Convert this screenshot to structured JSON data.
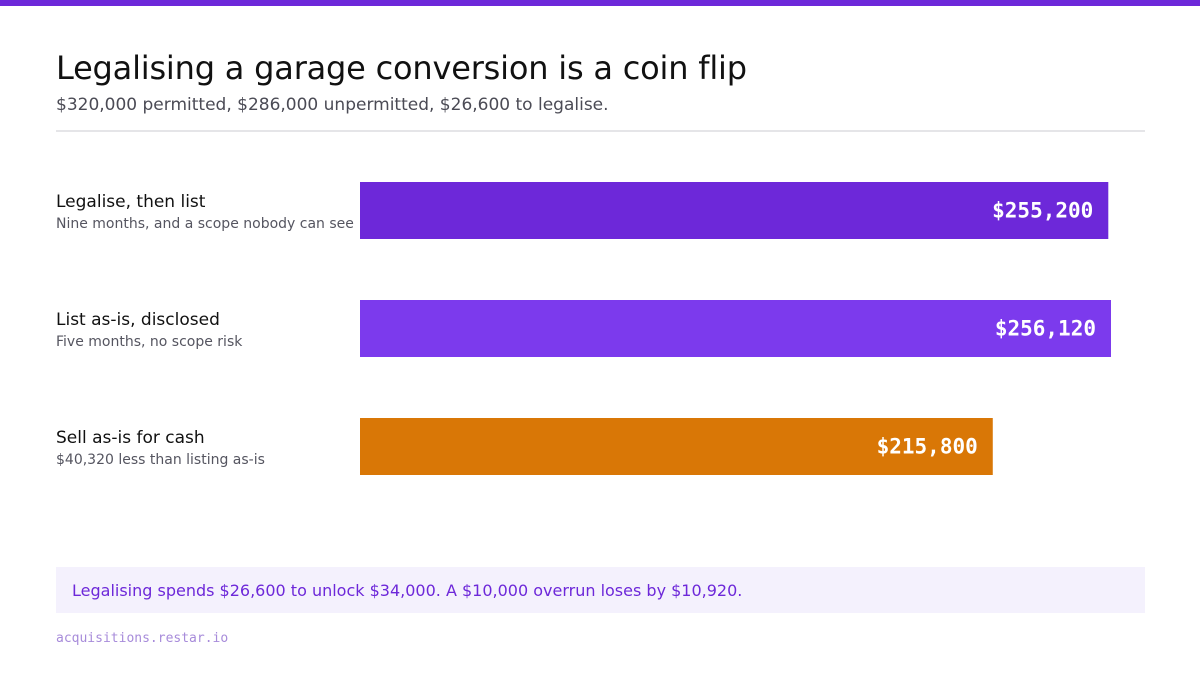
{
  "header": {
    "title": "Legalising a garage conversion is a coin flip",
    "subtitle": "$320,000 permitted, $286,000 unpermitted, $26,600 to legalise."
  },
  "chart_data": {
    "type": "bar",
    "orientation": "horizontal",
    "title": "Legalising a garage conversion is a coin flip",
    "subtitle": "$320,000 permitted, $286,000 unpermitted, $26,600 to legalise.",
    "categories": [
      "Legalise, then list",
      "List as-is, disclosed",
      "Sell as-is for cash"
    ],
    "notes": [
      "Nine months, and a scope nobody can see",
      "Five months, no scope risk",
      "$40,320 less than listing as-is"
    ],
    "values": [
      255200,
      256120,
      215800
    ],
    "value_labels": [
      "$255,200",
      "$256,120",
      "$215,800"
    ],
    "colors": [
      "#6d28d9",
      "#7c3aed",
      "#d97706"
    ],
    "xlim": [
      0,
      256120
    ],
    "grid": false,
    "legend": "none"
  },
  "callout": {
    "text": "Legalising spends $26,600 to unlock $34,000. A $10,000 overrun loses by $10,920."
  },
  "footer": {
    "source": "acquisitions.restar.io"
  },
  "colors": {
    "accent": "#6d28d9",
    "accent_light": "#7c3aed",
    "orange": "#d97706",
    "callout_bg": "#f4f1fd"
  }
}
